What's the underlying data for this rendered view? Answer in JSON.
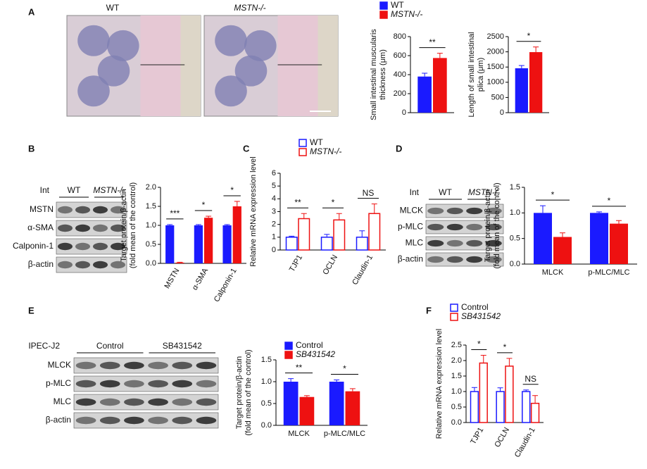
{
  "panel_labels": [
    "A",
    "B",
    "C",
    "D",
    "E",
    "F"
  ],
  "images": {
    "titles": [
      "WT",
      "MSTN-/-"
    ]
  },
  "blots": [
    {
      "treatment": "Int",
      "groups": [
        "WT",
        "MSTN-/-"
      ],
      "rows": [
        "MSTN",
        "α-SMA",
        "Calponin-1",
        "β-actin"
      ],
      "lanes_per_group": 2
    },
    {
      "treatment": "Int",
      "groups": [
        "WT",
        "MSTN-/-"
      ],
      "rows": [
        "MLCK",
        "p-MLC",
        "MLC",
        "β-actin"
      ],
      "lanes_per_group": 2
    },
    {
      "treatment": "IPEC-J2",
      "groups": [
        "Control",
        "SB431542"
      ],
      "rows": [
        "MLCK",
        "p-MLC",
        "MLC",
        "β-actin"
      ],
      "lanes_per_group": 3
    }
  ],
  "chart_data": [
    {
      "type": "bar",
      "y_label": [
        "Small intestinal muscularis",
        "thickness (μm)"
      ],
      "categories": [
        null
      ],
      "series": [
        {
          "name": "WT",
          "color": "#1a1aff",
          "values": [
            380
          ],
          "errors": [
            35
          ]
        },
        {
          "name": "MSTN-/-",
          "color": "#ee1111",
          "values": [
            575
          ],
          "errors": [
            50
          ]
        }
      ],
      "ylim": [
        0,
        800
      ],
      "yticks": [
        0,
        200,
        400,
        600,
        800
      ],
      "annotations": [
        "**"
      ]
    },
    {
      "type": "bar",
      "y_label": [
        "Length of small intestinal",
        "plica (μm)"
      ],
      "categories": [
        null
      ],
      "series": [
        {
          "color": "#1a1aff",
          "values": [
            1460
          ],
          "errors": [
            90
          ]
        },
        {
          "color": "#ee1111",
          "values": [
            1990
          ],
          "errors": [
            170
          ]
        }
      ],
      "ylim": [
        0,
        2500
      ],
      "yticks": [
        0,
        500,
        1000,
        1500,
        2000,
        2500
      ],
      "annotations": [
        "*"
      ]
    },
    {
      "type": "bar",
      "y_label": [
        "Target protein/β-actin",
        "(fold mean of the control)"
      ],
      "categories": [
        "MSTN",
        "α-SMA",
        "Calponin-1"
      ],
      "rotate_x_labels": true,
      "series": [
        {
          "color": "#1a1aff",
          "values": [
            1.0,
            1.0,
            1.0
          ],
          "errors": [
            0.02,
            0.02,
            0.02
          ]
        },
        {
          "color": "#ee1111",
          "values": [
            0.02,
            1.2,
            1.5
          ],
          "errors": [
            0.01,
            0.04,
            0.13
          ]
        }
      ],
      "ylim": [
        0,
        2.0
      ],
      "yticks": [
        {
          "value": 0,
          "label": "0.0"
        },
        0.5,
        {
          "value": 1,
          "label": "1.0"
        },
        1.5,
        {
          "value": 2,
          "label": "2.0"
        }
      ],
      "annotations": [
        "***",
        "*",
        "*"
      ]
    },
    {
      "type": "bar",
      "y_label": [
        "Relative mRNA expression level"
      ],
      "categories": [
        "TJP1",
        "OCLN",
        "Claudin-1"
      ],
      "rotate_x_labels": true,
      "bar_style": "outline",
      "series": [
        {
          "name": "WT",
          "color": "#1a1aff",
          "values": [
            1.0,
            1.0,
            1.0
          ],
          "errors": [
            0.08,
            0.22,
            0.5
          ]
        },
        {
          "name": "MSTN-/-",
          "color": "#ee1111",
          "values": [
            2.45,
            2.35,
            2.85
          ],
          "errors": [
            0.4,
            0.5,
            0.75
          ]
        }
      ],
      "ylim": [
        0,
        6
      ],
      "yticks": [
        0,
        1,
        2,
        3,
        4,
        5,
        6
      ],
      "annotations": [
        "**",
        "*",
        "NS"
      ]
    },
    {
      "type": "bar",
      "y_label": [
        "Target protein/β-actin",
        "(fold mean of the control)"
      ],
      "categories": [
        "MLCK",
        "p-MLC/MLC"
      ],
      "series": [
        {
          "color": "#1a1aff",
          "values": [
            1.0,
            1.0
          ],
          "errors": [
            0.14,
            0.02
          ]
        },
        {
          "color": "#ee1111",
          "values": [
            0.53,
            0.79
          ],
          "errors": [
            0.08,
            0.06
          ]
        }
      ],
      "ylim": [
        0,
        1.5
      ],
      "yticks": [
        {
          "value": 0,
          "label": "0.0"
        },
        0.5,
        {
          "value": 1,
          "label": "1.0"
        },
        1.5
      ],
      "annotations": [
        "*",
        "*"
      ]
    },
    {
      "type": "bar",
      "y_label": [
        "Target protein/β-actin",
        "(fold mean of the control)"
      ],
      "categories": [
        "MLCK",
        "p-MLC/MLC"
      ],
      "series": [
        {
          "name": "Control",
          "color": "#1a1aff",
          "values": [
            1.0,
            1.0
          ],
          "errors": [
            0.07,
            0.04
          ]
        },
        {
          "name": "SB431542",
          "color": "#ee1111",
          "values": [
            0.65,
            0.78
          ],
          "errors": [
            0.03,
            0.06
          ]
        }
      ],
      "ylim": [
        0,
        1.5
      ],
      "yticks": [
        {
          "value": 0,
          "label": "0.0"
        },
        0.5,
        {
          "value": 1,
          "label": "1.0"
        },
        1.5
      ],
      "annotations": [
        "**",
        "*"
      ]
    },
    {
      "type": "bar",
      "y_label": [
        "Relative mRNA expression level"
      ],
      "categories": [
        "TJP1",
        "OCLN",
        "Claudin-1"
      ],
      "rotate_x_labels": true,
      "bar_style": "outline",
      "series": [
        {
          "name": "Control",
          "color": "#1a1aff",
          "values": [
            1.0,
            1.0,
            1.0
          ],
          "errors": [
            0.13,
            0.12,
            0.05
          ]
        },
        {
          "name": "SB431542",
          "color": "#ee1111",
          "values": [
            1.92,
            1.82,
            0.62
          ],
          "errors": [
            0.25,
            0.25,
            0.25
          ]
        }
      ],
      "ylim": [
        0,
        2.5
      ],
      "yticks": [
        {
          "value": 0,
          "label": "0.0"
        },
        0.5,
        {
          "value": 1,
          "label": "1.0"
        },
        1.5,
        {
          "value": 2,
          "label": "2.0"
        },
        2.5
      ],
      "annotations": [
        "*",
        "*",
        "NS"
      ]
    }
  ]
}
